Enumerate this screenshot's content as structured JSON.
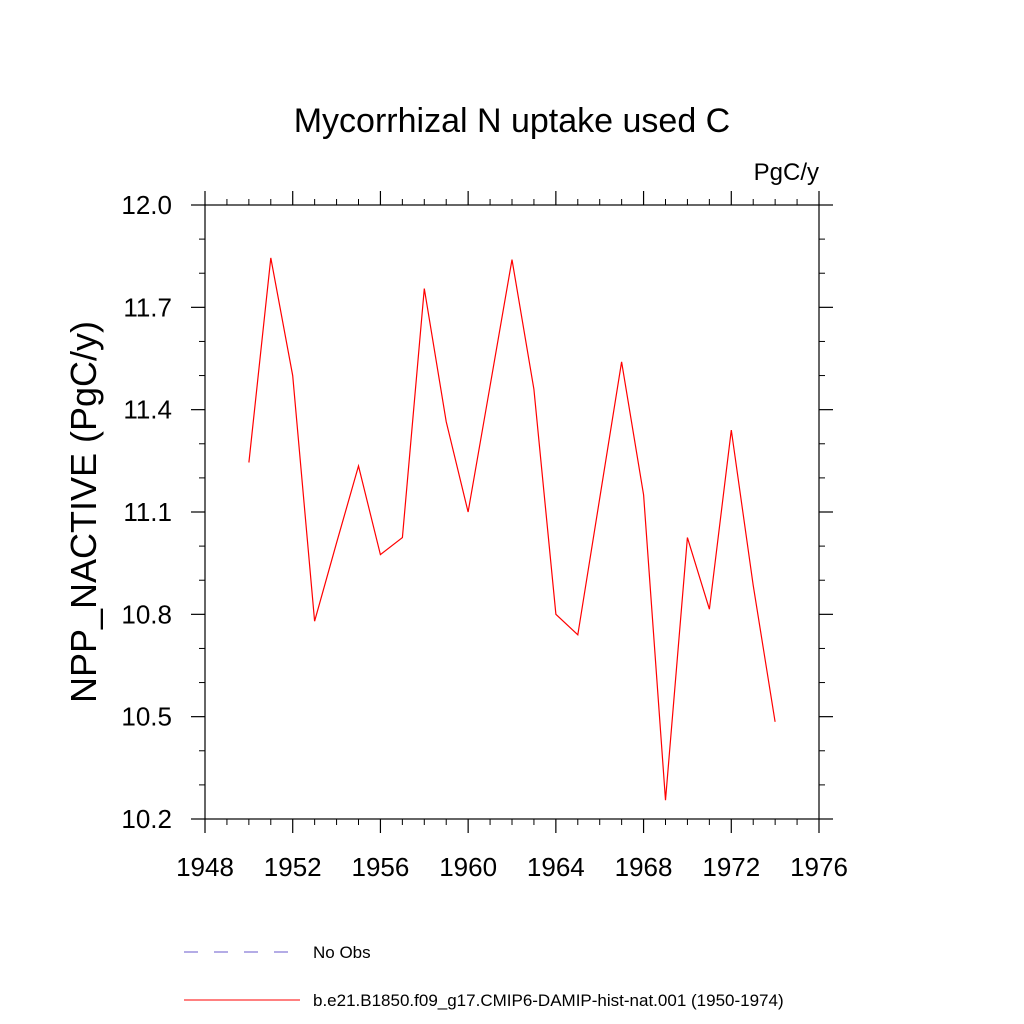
{
  "chart_data": {
    "type": "line",
    "title": "Mycorrhizal N uptake used C",
    "units": "PgC/y",
    "ylabel": "NPP_NACTIVE  (PgC/y)",
    "xlabel": "",
    "xlim": [
      1948,
      1976
    ],
    "ylim": [
      10.2,
      12.0
    ],
    "x_ticks": [
      1948,
      1952,
      1956,
      1960,
      1964,
      1968,
      1972,
      1976
    ],
    "y_ticks": [
      10.2,
      10.5,
      10.8,
      11.1,
      11.4,
      11.7,
      12.0
    ],
    "x_tick_labels": [
      "1948",
      "1952",
      "1956",
      "1960",
      "1964",
      "1968",
      "1972",
      "1976"
    ],
    "y_tick_labels": [
      "10.2",
      "10.5",
      "10.8",
      "11.1",
      "11.4",
      "11.7",
      "12.0"
    ],
    "grid": false,
    "legend_position": "bottom",
    "series": [
      {
        "name": "No Obs",
        "color": "#6a5acd",
        "dash": "dashed",
        "x": [],
        "values": []
      },
      {
        "name": "b.e21.B1850.f09_g17.CMIP6-DAMIP-hist-nat.001 (1950-1974)",
        "color": "#ff0000",
        "dash": "solid",
        "x": [
          1950,
          1951,
          1952,
          1953,
          1954,
          1955,
          1956,
          1957,
          1958,
          1959,
          1960,
          1961,
          1962,
          1963,
          1964,
          1965,
          1966,
          1967,
          1968,
          1969,
          1970,
          1971,
          1972,
          1973,
          1974
        ],
        "values": [
          11.245,
          11.845,
          11.5,
          10.78,
          11.01,
          11.235,
          10.975,
          11.025,
          11.755,
          11.365,
          11.1,
          11.47,
          11.84,
          11.46,
          10.8,
          10.74,
          11.14,
          11.54,
          11.15,
          10.255,
          11.025,
          10.815,
          11.34,
          10.885,
          10.485
        ]
      }
    ]
  }
}
